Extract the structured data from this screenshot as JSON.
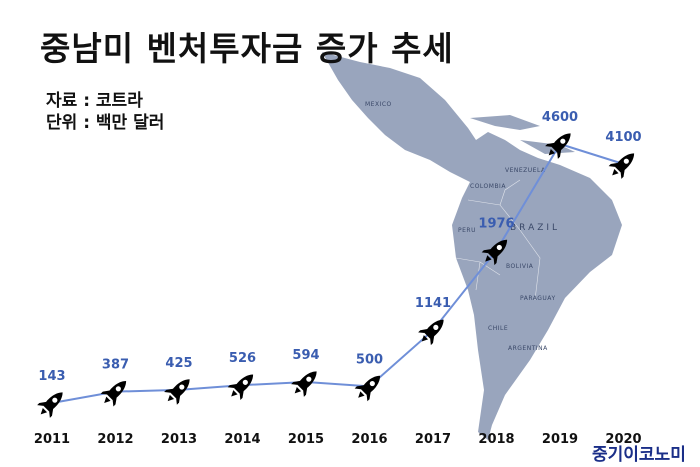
{
  "header": {
    "title": "중남미 벤처투자금 증가 추세",
    "source_line": "자료 : 코트라",
    "unit_line": "단위 : 백만 달러"
  },
  "brand": "중기이코노미",
  "colors": {
    "line": "#6f8fd8",
    "label": "#3a5db0",
    "map": "#99a5bd",
    "rocket": "#000000"
  },
  "map_labels": [
    "MEXICO",
    "BRAZIL",
    "COLOMBIA",
    "VENEZUELA",
    "PERU",
    "BOLIVIA",
    "PARAGUAY",
    "CHILE",
    "ARGENTINA"
  ],
  "chart_data": {
    "type": "line",
    "title": "중남미 벤처투자금 증가 추세",
    "categories": [
      "2011",
      "2012",
      "2013",
      "2014",
      "2015",
      "2016",
      "2017",
      "2018",
      "2019",
      "2020"
    ],
    "series": [
      {
        "values": [
          143,
          387,
          425,
          526,
          594,
          500,
          1141,
          1976,
          4600,
          4100
        ]
      }
    ],
    "ylim": [
      0,
      5000
    ],
    "grid": false,
    "marker": "rocket-icon"
  }
}
